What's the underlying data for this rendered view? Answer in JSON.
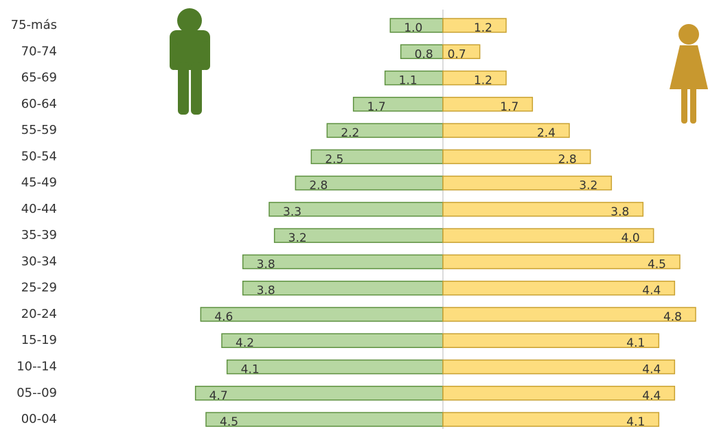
{
  "chart_data": {
    "type": "pyramid",
    "categories": [
      "75-más",
      "70-74",
      "65-69",
      "60-64",
      "55-59",
      "50-54",
      "45-49",
      "40-44",
      "35-39",
      "30-34",
      "25-29",
      "20-24",
      "15-19",
      "10--14",
      "05--09",
      "00-04"
    ],
    "series": [
      {
        "color": "#b7d7a2",
        "stroke": "#5e9140",
        "side": "left",
        "values": [
          1.0,
          0.8,
          1.1,
          1.7,
          2.2,
          2.5,
          2.8,
          3.3,
          3.2,
          3.8,
          3.8,
          4.6,
          4.2,
          4.1,
          4.7,
          4.5
        ],
        "value_labels": [
          "1.0",
          "0.8",
          "1.1",
          "1.7",
          "2.2",
          "2.5",
          "2.8",
          "3.3",
          "3.2",
          "3.8",
          "3.8",
          "4.6",
          "4.2",
          "4.1",
          "4.7",
          "4.5"
        ]
      },
      {
        "color": "#fddd7e",
        "stroke": "#c9a232",
        "side": "right",
        "values": [
          1.2,
          0.7,
          1.2,
          1.7,
          2.4,
          2.8,
          3.2,
          3.8,
          4.0,
          4.5,
          4.4,
          4.8,
          4.1,
          4.4,
          4.4,
          4.1
        ],
        "value_labels": [
          "1.2",
          "0.7",
          "1.2",
          "1.7",
          "2.4",
          "2.8",
          "3.2",
          "3.8",
          "4.0",
          "4.5",
          "4.4",
          "4.8",
          "4.1",
          "4.4",
          "4.4",
          "4.1"
        ]
      }
    ]
  }
}
